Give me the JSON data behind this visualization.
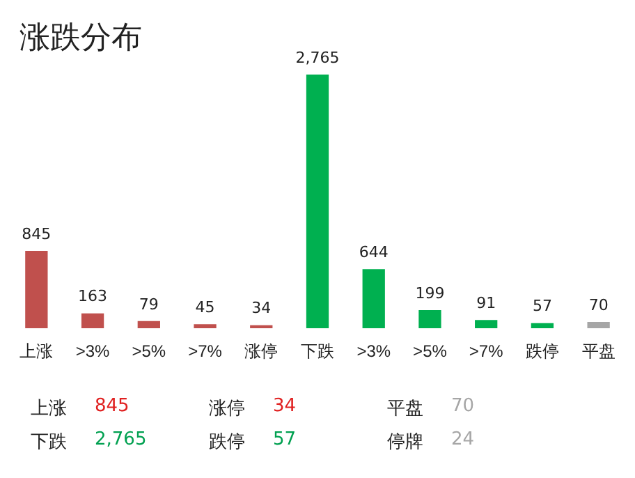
{
  "chart_data": {
    "type": "bar",
    "title": "涨跌分布",
    "categories": [
      "上涨",
      ">3%",
      ">5%",
      ">7%",
      "涨停",
      "下跌",
      ">3%",
      ">5%",
      ">7%",
      "跌停",
      "平盘"
    ],
    "values": [
      845,
      163,
      79,
      45,
      34,
      2765,
      644,
      199,
      91,
      57,
      70
    ],
    "colors": [
      "#c0504d",
      "#c0504d",
      "#c0504d",
      "#c0504d",
      "#c0504d",
      "#00b050",
      "#00b050",
      "#00b050",
      "#00b050",
      "#00b050",
      "#a6a6a6"
    ],
    "value_labels": [
      "845",
      "163",
      "79",
      "45",
      "34",
      "2,765",
      "644",
      "199",
      "91",
      "57",
      "70"
    ],
    "tick_labels": "x",
    "grid": false,
    "legend": false,
    "annotations": [
      "上涨",
      "845",
      "涨停",
      "34",
      "平盘",
      "70",
      "下跌",
      "2,765",
      "跌停",
      "57",
      "停牌",
      "24"
    ]
  }
}
